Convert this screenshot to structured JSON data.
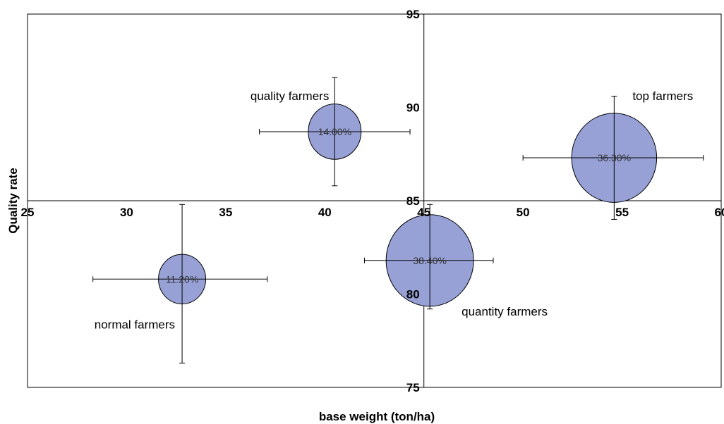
{
  "chart_data": {
    "type": "scatter",
    "subtype": "bubble",
    "xlabel": "base weight (ton/ha)",
    "ylabel": "Quality rate",
    "xlim": [
      25,
      60
    ],
    "ylim": [
      75,
      95
    ],
    "x_ticks": [
      "25",
      "30",
      "35",
      "40",
      "45",
      "50",
      "55",
      "60"
    ],
    "y_ticks": [
      "75",
      "80",
      "85",
      "90",
      "95"
    ],
    "axes_cross": {
      "x": 45,
      "y": 85
    },
    "grid": false,
    "bubble_color": "#97a1d6",
    "points": [
      {
        "label": "normal farmers",
        "x": 32.8,
        "y": 80.8,
        "size": 11.2,
        "size_label": "11.20%",
        "xerr": [
          28.3,
          37.1
        ],
        "yerr": [
          76.3,
          84.8
        ]
      },
      {
        "label": "quality farmers",
        "x": 40.5,
        "y": 88.7,
        "size": 14.0,
        "size_label": "14.00%",
        "xerr": [
          36.7,
          44.3
        ],
        "yerr": [
          85.8,
          91.6
        ]
      },
      {
        "label": "quantity farmers",
        "x": 45.3,
        "y": 81.8,
        "size": 38.4,
        "size_label": "38.40%",
        "xerr": [
          42.0,
          48.5
        ],
        "yerr": [
          79.2,
          84.8
        ]
      },
      {
        "label": "top farmers",
        "x": 54.6,
        "y": 87.3,
        "size": 36.3,
        "size_label": "36.30%",
        "xerr": [
          50.0,
          59.1
        ],
        "yerr": [
          84.0,
          90.6
        ]
      }
    ]
  }
}
